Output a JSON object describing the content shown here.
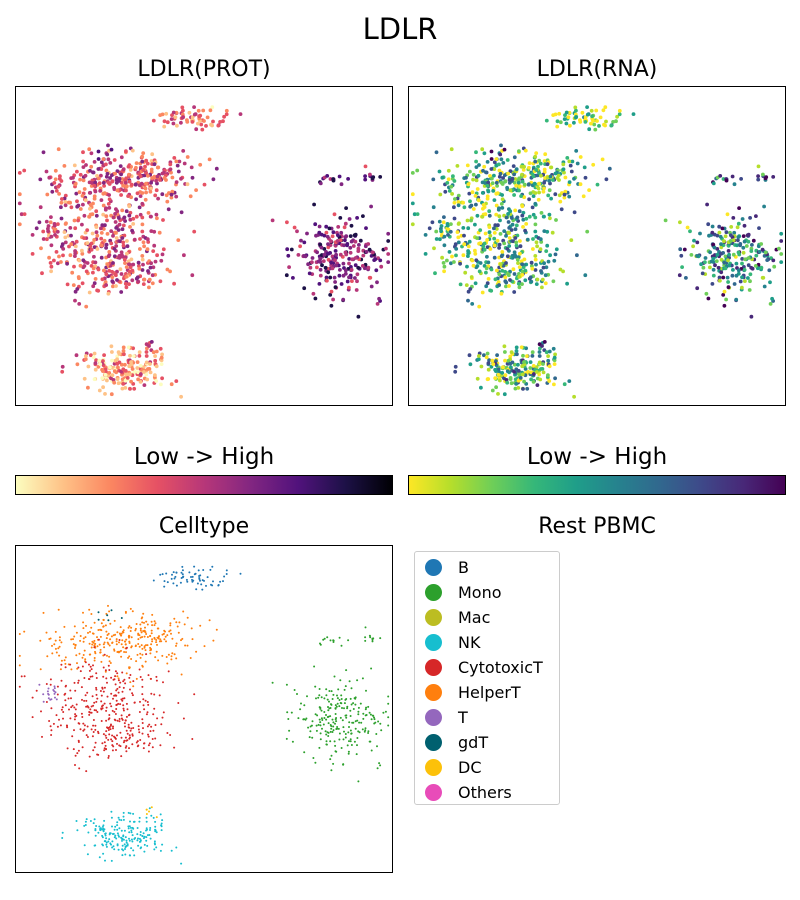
{
  "figure": {
    "title": "LDLR"
  },
  "chart_data": [
    {
      "type": "scatter",
      "title": "LDLR(PROT)",
      "xlabel": "",
      "ylabel": "",
      "ticks_visible": false,
      "color_scale": "magma_r",
      "colorbar_label": "Low  ->  High"
    },
    {
      "type": "scatter",
      "title": "LDLR(RNA)",
      "xlabel": "",
      "ylabel": "",
      "ticks_visible": false,
      "color_scale": "viridis_r",
      "colorbar_label": "Low  ->  High"
    },
    {
      "type": "scatter",
      "title": "Celltype",
      "xlabel": "",
      "ylabel": "",
      "ticks_visible": false,
      "legend": {
        "title": "Rest PBMC",
        "placement": "right",
        "entries": [
          {
            "label": "B",
            "color": "#1f77b4"
          },
          {
            "label": "Mono",
            "color": "#2ca02c"
          },
          {
            "label": "Mac",
            "color": "#bcbd22"
          },
          {
            "label": "NK",
            "color": "#17becf"
          },
          {
            "label": "CytotoxicT",
            "color": "#d62728"
          },
          {
            "label": "HelperT",
            "color": "#ff7f0e"
          },
          {
            "label": "T",
            "color": "#9467bd"
          },
          {
            "label": "gdT",
            "color": "#00606f"
          },
          {
            "label": "DC",
            "color": "#fcc10a"
          },
          {
            "label": "Others",
            "color": "#e84cb9"
          }
        ]
      }
    }
  ],
  "palettes": {
    "prot": [
      "#fcfdbf",
      "#fec287",
      "#fb8761",
      "#e65164",
      "#b73779",
      "#822681",
      "#51127c",
      "#1d1147",
      "#000004"
    ],
    "rna": [
      "#fde725",
      "#b5de2b",
      "#6ece58",
      "#35b779",
      "#1f9e89",
      "#26828e",
      "#31688e",
      "#3e4989",
      "#482878",
      "#440154"
    ]
  }
}
